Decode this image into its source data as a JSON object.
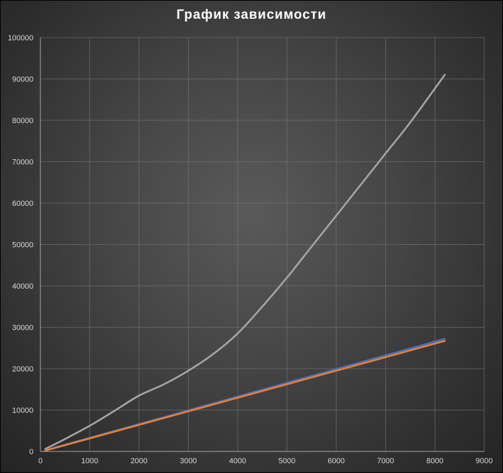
{
  "chart_data": {
    "type": "line",
    "title": "График зависимости",
    "xlabel": "",
    "ylabel": "",
    "xlim": [
      0,
      9000
    ],
    "ylim": [
      0,
      100000
    ],
    "x_ticks": [
      0,
      1000,
      2000,
      3000,
      4000,
      5000,
      6000,
      7000,
      8000,
      9000
    ],
    "y_ticks": [
      0,
      10000,
      20000,
      30000,
      40000,
      50000,
      60000,
      70000,
      80000,
      90000,
      100000
    ],
    "grid": true,
    "legend": "none",
    "series": [
      {
        "color": "#a5a5a5",
        "x": [
          100,
          500,
          1000,
          1500,
          2000,
          2500,
          3000,
          3500,
          4000,
          4500,
          5000,
          5500,
          6000,
          6500,
          7000,
          7500,
          8200
        ],
        "y": [
          600,
          3000,
          6200,
          9800,
          13500,
          16200,
          19500,
          23500,
          28500,
          35000,
          42000,
          49500,
          57000,
          64500,
          72000,
          79500,
          91000
        ]
      },
      {
        "color": "#4472c4",
        "x": [
          100,
          8200
        ],
        "y": [
          300,
          27200
        ]
      },
      {
        "color": "#ed7d31",
        "x": [
          100,
          8200
        ],
        "y": [
          200,
          26700
        ]
      }
    ]
  }
}
